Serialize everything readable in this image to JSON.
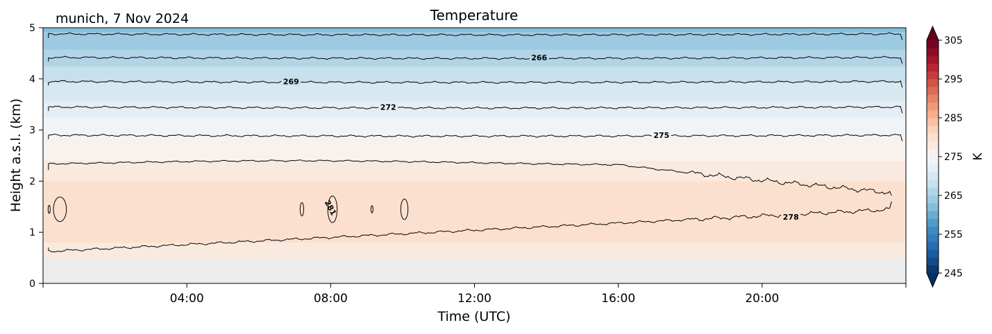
{
  "page": {
    "location_date": "munich, 7 Nov 2024"
  },
  "chart_data": {
    "type": "heatmap",
    "title": "Temperature",
    "xlabel": "Time (UTC)",
    "ylabel": "Height a.s.l. (km)",
    "x_range_hours": [
      0,
      24
    ],
    "x_ticks": [
      "04:00",
      "08:00",
      "12:00",
      "16:00",
      "20:00"
    ],
    "x_tick_hours": [
      4,
      8,
      12,
      16,
      20
    ],
    "y_range_km": [
      0,
      5
    ],
    "y_ticks": [
      "0",
      "1",
      "2",
      "3",
      "4",
      "5"
    ],
    "colorbar": {
      "label": "K",
      "range": [
        245,
        305
      ],
      "ticks": [
        "245",
        "255",
        "265",
        "275",
        "285",
        "295",
        "305"
      ],
      "tick_values": [
        245,
        255,
        265,
        275,
        285,
        295,
        305
      ],
      "extend": "both",
      "cmap": "RdBu_r"
    },
    "no_data_below_km": 0.5,
    "contours": [
      {
        "level": 266,
        "label": "266",
        "height_km": 4.42,
        "label_hour": 13.8
      },
      {
        "level": 269,
        "label": "269",
        "height_km": 3.95,
        "label_hour": 6.9
      },
      {
        "level": 272,
        "label": "272",
        "height_km": 3.45,
        "label_hour": 9.6
      },
      {
        "level": 275,
        "label": "275",
        "height_km": 2.9,
        "label_hour": 17.2
      },
      {
        "level": 278,
        "label": "278",
        "label_hour": 20.8
      },
      {
        "level": 281,
        "label": "281",
        "label_hour": 8.0
      }
    ],
    "top_contour_height_km": 4.88,
    "field_profile": [
      {
        "height_km": 0.5,
        "temp_k": 277.5
      },
      {
        "height_km": 1.0,
        "temp_k": 280.0
      },
      {
        "height_km": 1.5,
        "temp_k": 280.5
      },
      {
        "height_km": 2.0,
        "temp_k": 279.0
      },
      {
        "height_km": 2.5,
        "temp_k": 276.5
      },
      {
        "height_km": 3.0,
        "temp_k": 274.5
      },
      {
        "height_km": 3.5,
        "temp_k": 271.5
      },
      {
        "height_km": 4.0,
        "temp_k": 268.5
      },
      {
        "height_km": 4.5,
        "temp_k": 265.5
      },
      {
        "height_km": 5.0,
        "temp_k": 262.5
      }
    ]
  }
}
